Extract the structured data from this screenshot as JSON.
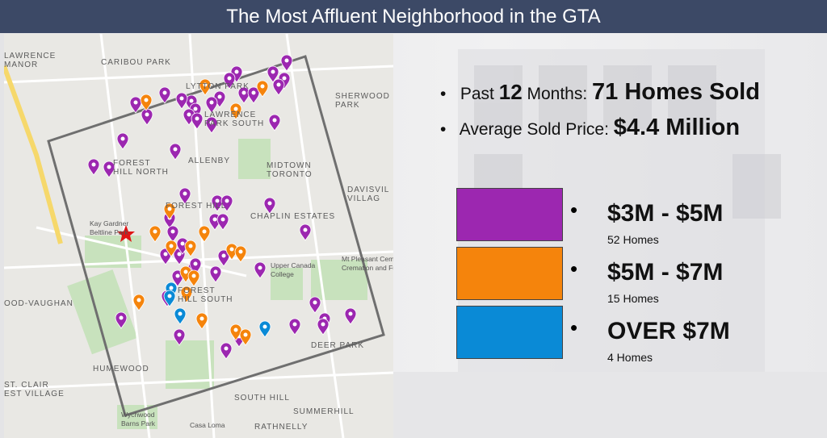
{
  "header": {
    "title": "The Most Affluent Neighborhood in the GTA"
  },
  "stats": [
    {
      "prefix": "Past",
      "number": "12",
      "suffix": "Months:",
      "value": "71 Homes Sold"
    },
    {
      "prefix": "Average Sold Price:",
      "value": "$4.4 Million"
    }
  ],
  "legend": [
    {
      "range": "$3M - $5M",
      "count": "52 Homes",
      "color": "#9c27b0"
    },
    {
      "range": "$5M - $7M",
      "count": "15 Homes",
      "color": "#f5840c"
    },
    {
      "range": "OVER $7M",
      "count": "4 Homes",
      "color": "#0a8ad6"
    }
  ],
  "map": {
    "labels": [
      [
        "LAWRENCE",
        "MANOR"
      ],
      [
        "CARIBOU PARK"
      ],
      [
        "LYTTON PARK"
      ],
      [
        "LAWRENCE",
        "PARK SOUTH"
      ],
      [
        "SHERWOOD",
        "PARK"
      ],
      [
        "ALLENBY"
      ],
      [
        "FOREST",
        "HILL NORTH"
      ],
      [
        "MIDTOWN",
        "TORONTO"
      ],
      [
        "DAVISVIL",
        "VILLAG"
      ],
      [
        "FOREST HILL"
      ],
      [
        "CHAPLIN ESTATES"
      ],
      [
        "FOREST",
        "HILL SOUTH"
      ],
      [
        "OOD-VAUGHAN"
      ],
      [
        "HUMEWOOD"
      ],
      [
        "ST. CLAIR",
        "EST VILLAGE"
      ],
      [
        "SOUTH HILL"
      ],
      [
        "SUMMERHILL"
      ],
      [
        "DEER PARK"
      ],
      [
        "RATHNELLY"
      ],
      [
        "Casa Loma"
      ],
      [
        "Upper Canada",
        "College"
      ],
      [
        "Kay Gardner",
        "Beltline Park"
      ],
      [
        "Wychwood",
        "Barns Park"
      ],
      [
        "Mt Pleasant Cem",
        "Cremation and Fune"
      ]
    ]
  }
}
